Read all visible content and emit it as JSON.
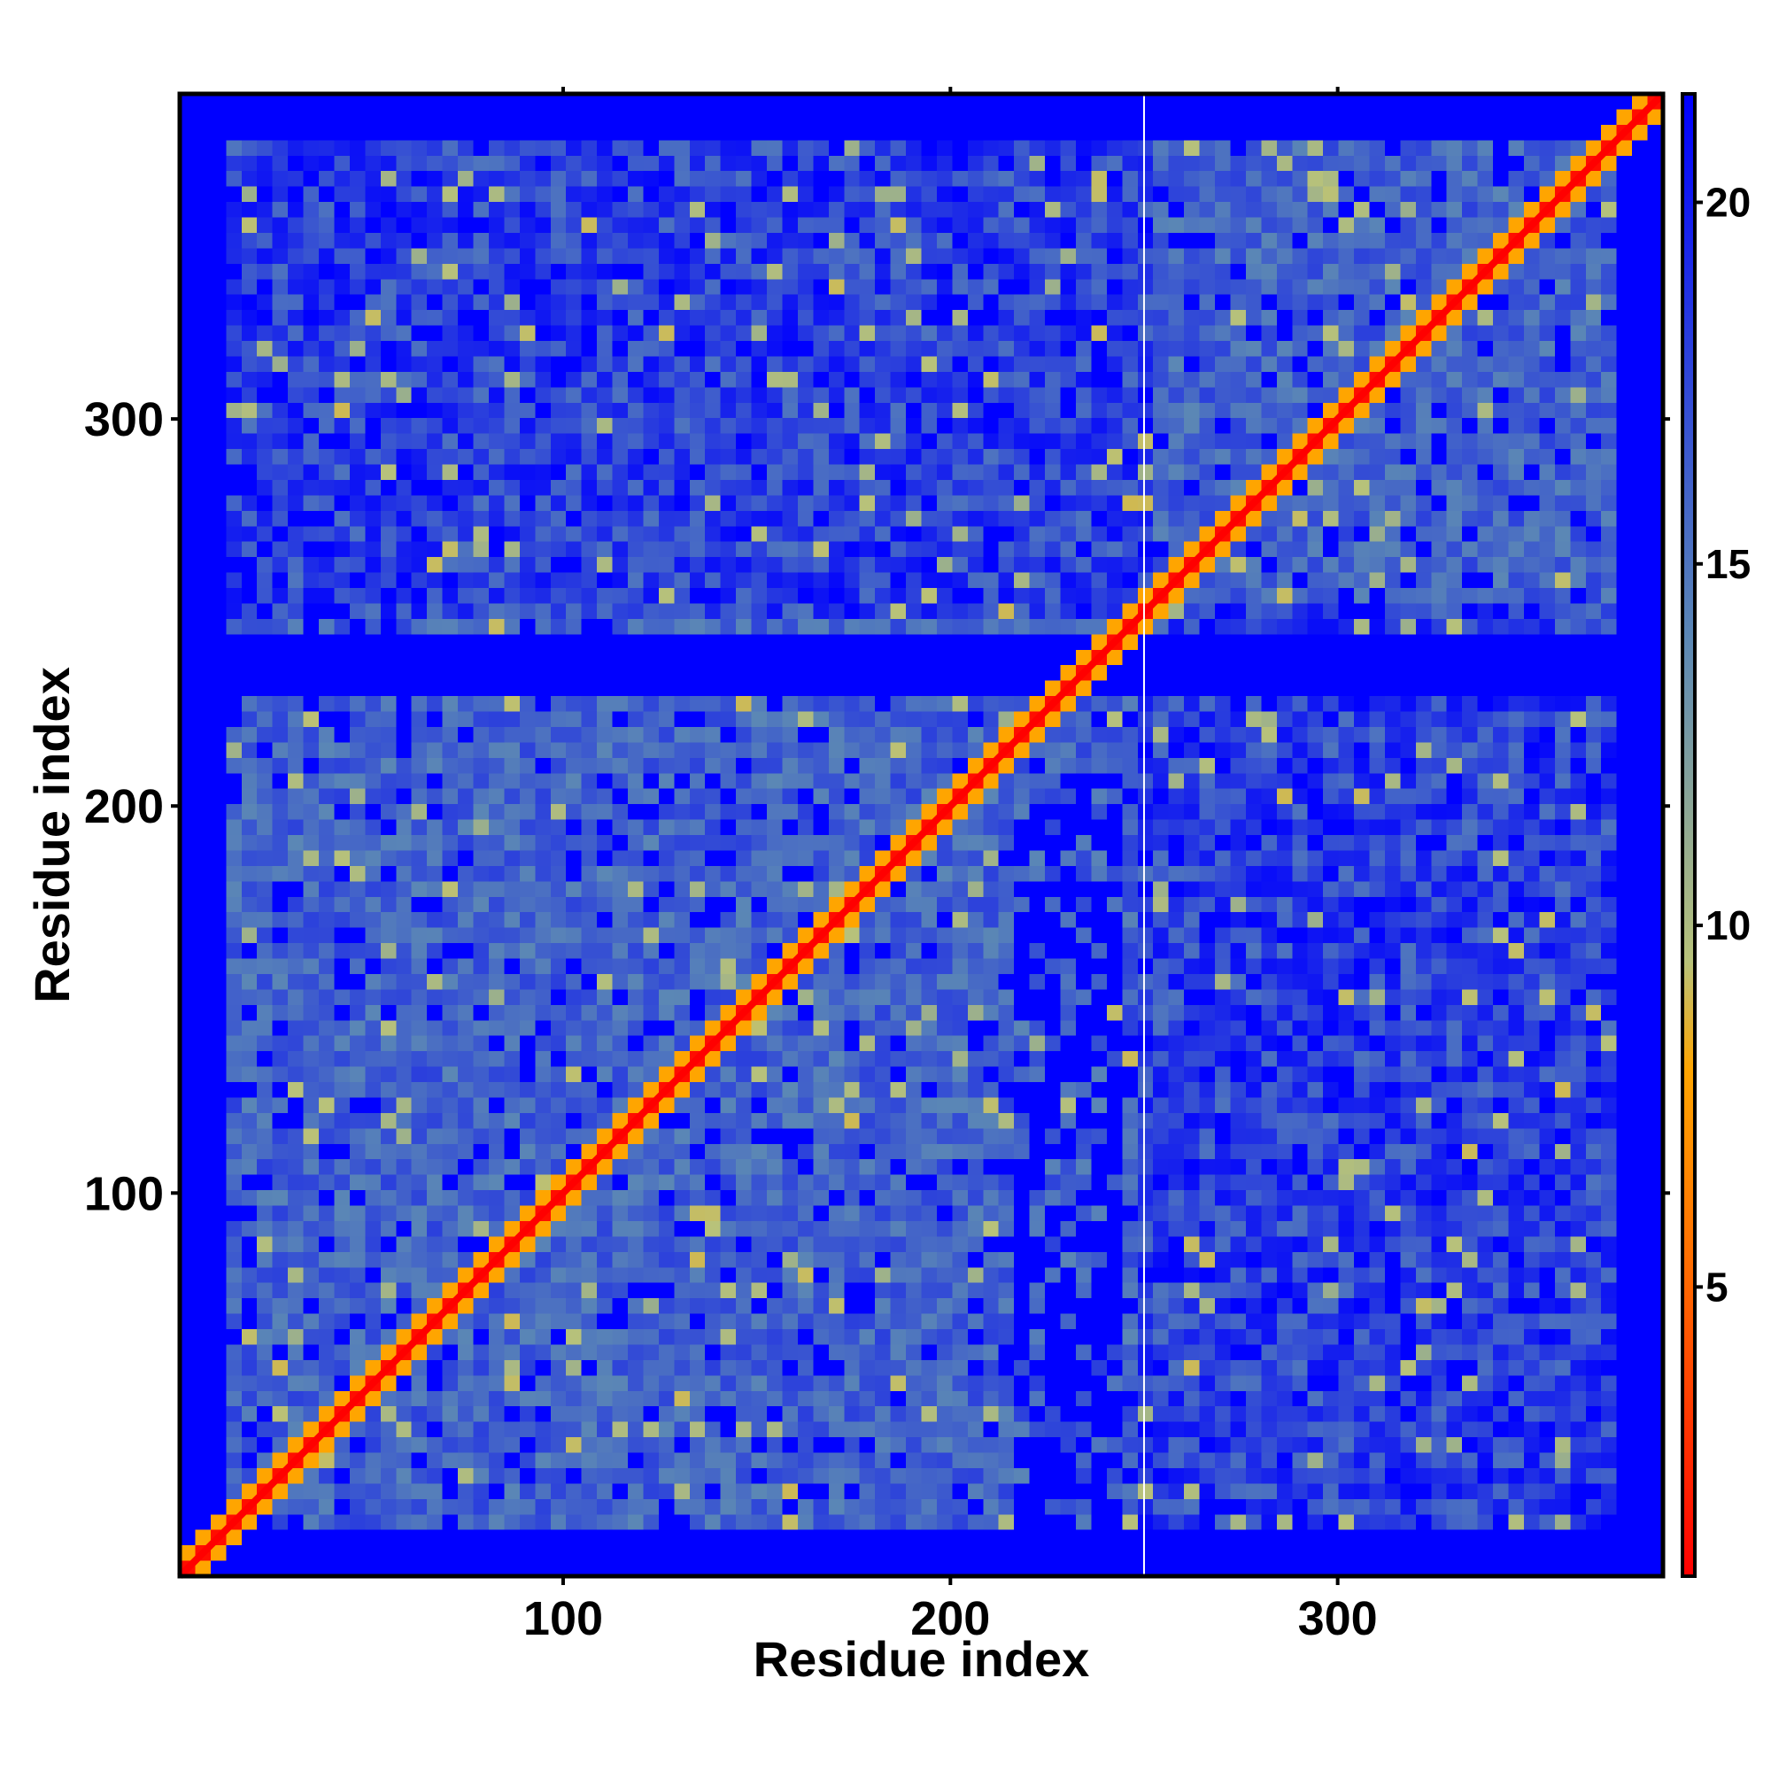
{
  "chart_data": {
    "type": "heatmap",
    "title": "",
    "xlabel": "Residue index",
    "ylabel": "Residue index",
    "xlim": [
      1,
      384
    ],
    "ylim": [
      1,
      384
    ],
    "x_ticks": [
      {
        "value": 100,
        "label": "100"
      },
      {
        "value": 200,
        "label": "200"
      },
      {
        "value": 300,
        "label": "300"
      }
    ],
    "y_ticks": [
      {
        "value": 100,
        "label": "100"
      },
      {
        "value": 200,
        "label": "200"
      },
      {
        "value": 300,
        "label": "300"
      }
    ],
    "colorbar": {
      "range": [
        1,
        21.5
      ],
      "ticks": [
        {
          "value": 5,
          "label": "5"
        },
        {
          "value": 10,
          "label": "10"
        },
        {
          "value": 15,
          "label": "15"
        },
        {
          "value": 20,
          "label": "20"
        }
      ],
      "stops": [
        {
          "value": 1,
          "color": "#ff0000"
        },
        {
          "value": 5,
          "color": "#ff6600"
        },
        {
          "value": 8,
          "color": "#ffa500"
        },
        {
          "value": 9.5,
          "color": "#b8c27a"
        },
        {
          "value": 14,
          "color": "#5b87b5"
        },
        {
          "value": 21.5,
          "color": "#0000ff"
        }
      ]
    },
    "domains": [
      [
        1,
        250
      ],
      [
        251,
        384
      ]
    ],
    "gap_line_x": 250,
    "description_cells": "Pairwise residue distance map (Å): near-zero along diagonal (red), contacts 5-10 (orange/yellow), background 12-20 (steel blue), >20 (blue)."
  }
}
